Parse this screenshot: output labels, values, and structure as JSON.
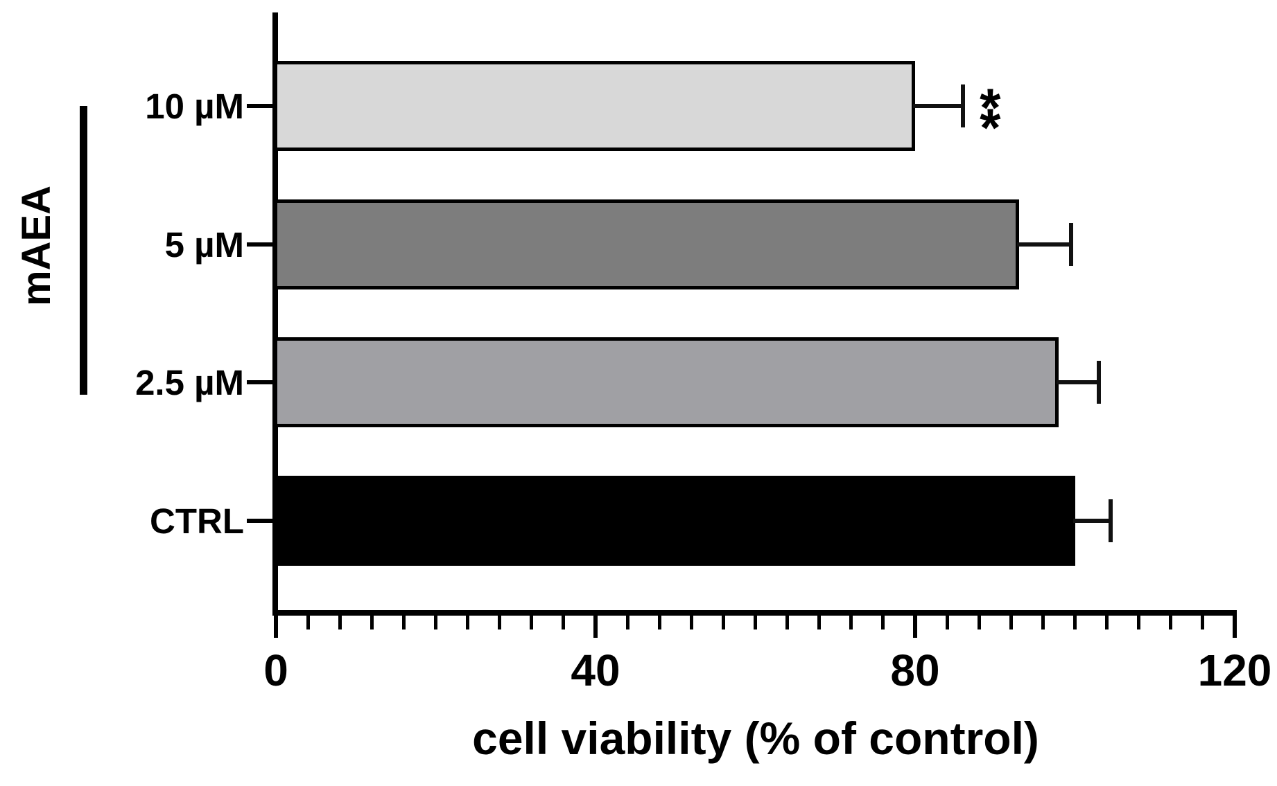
{
  "chart_data": {
    "type": "bar",
    "orientation": "horizontal",
    "title": "",
    "xlabel": "cell viability (% of control)",
    "ylabel": "",
    "xlim": [
      0,
      120
    ],
    "x_major_ticks": [
      {
        "value": 0,
        "label": "0"
      },
      {
        "value": 40,
        "label": "40"
      },
      {
        "value": 80,
        "label": "80"
      },
      {
        "value": 120,
        "label": "120"
      }
    ],
    "x_minor_tick_step": 4,
    "grid": false,
    "legend": false,
    "categories": [
      "10 µM",
      "5 µM",
      "2.5 µM",
      "CTRL"
    ],
    "series": [
      {
        "name": "cell viability (% of control)",
        "values": [
          80,
          93,
          98,
          100
        ],
        "errors_plus": [
          6,
          6.5,
          5,
          4.5
        ]
      }
    ],
    "bar_colors": [
      "#d8d8d8",
      "#7d7d7d",
      "#a0a0a4",
      "#000000"
    ],
    "bar_border_color": "#000000",
    "significance": [
      "**",
      "",
      "",
      ""
    ]
  },
  "group_bracket": {
    "label": "mAEA",
    "members": [
      "10 µM",
      "5 µM",
      "2.5 µM"
    ]
  },
  "colors": {
    "axis": "#000000",
    "error_bar": "#111111",
    "background": "#ffffff"
  }
}
